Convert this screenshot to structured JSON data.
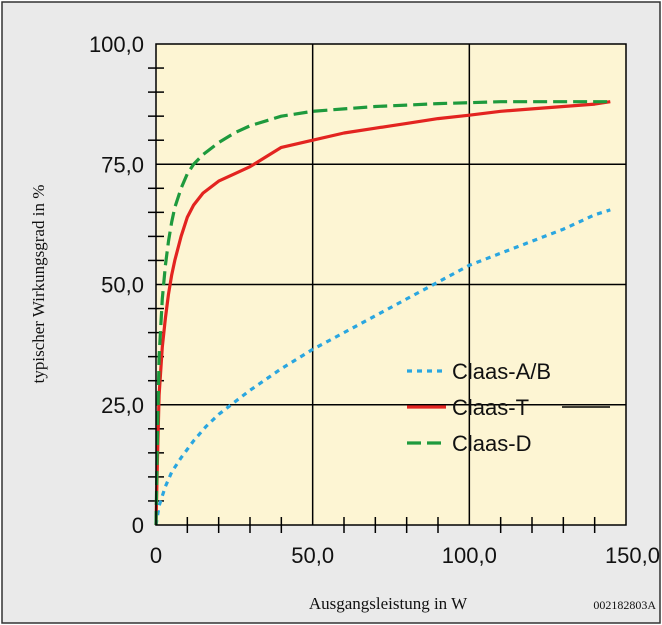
{
  "chart_data": {
    "type": "line",
    "title": "",
    "xlabel": "Ausgangsleistung in W",
    "ylabel": "typischer Wirkungsgrad in %",
    "xlim": [
      0,
      150
    ],
    "ylim": [
      0,
      100
    ],
    "x_ticks": [
      "0",
      "50,0",
      "100,0",
      "150,0"
    ],
    "y_ticks": [
      "0",
      "25,0",
      "50,0",
      "75,0",
      "100,0"
    ],
    "grid": true,
    "legend_position": "lower-right",
    "figure_code": "002182803A",
    "colors": {
      "plot_bg": "#fdf5d3",
      "frame_bg": "#eaeaea",
      "grid": "#000000"
    },
    "series": [
      {
        "name": "Claas-A/B",
        "color": "#2aa6e0",
        "dash": "dotted",
        "x": [
          0,
          1,
          3,
          5,
          8,
          12,
          16,
          20,
          25,
          30,
          40,
          50,
          60,
          70,
          80,
          90,
          100,
          110,
          120,
          130,
          140,
          145
        ],
        "y": [
          0,
          4,
          8,
          11,
          14,
          17.5,
          20.5,
          23,
          25.5,
          28,
          32.5,
          36.5,
          40,
          43.5,
          47,
          50.5,
          54,
          56.5,
          59,
          61.5,
          64.5,
          65.5
        ]
      },
      {
        "name": "Claas-T",
        "color": "#e32420",
        "dash": "solid",
        "x": [
          0,
          0.5,
          1,
          2,
          3,
          4,
          5,
          6,
          8,
          10,
          12,
          15,
          20,
          25,
          30,
          35,
          40,
          50,
          60,
          70,
          80,
          90,
          100,
          110,
          120,
          130,
          140,
          145
        ],
        "y": [
          0,
          15,
          27,
          37,
          43,
          48,
          52,
          55,
          60,
          64,
          66.5,
          69,
          71.5,
          73,
          74.5,
          76.5,
          78.5,
          80,
          81.5,
          82.5,
          83.5,
          84.5,
          85.2,
          86,
          86.5,
          87,
          87.5,
          88
        ]
      },
      {
        "name": "Claas-D",
        "color": "#1e9a3d",
        "dash": "dashed",
        "x": [
          0,
          0.5,
          1,
          2,
          3,
          4,
          5,
          6,
          8,
          10,
          12,
          15,
          20,
          25,
          30,
          40,
          50,
          60,
          70,
          80,
          90,
          100,
          110,
          120,
          130,
          140,
          145
        ],
        "y": [
          0,
          20,
          35,
          47,
          54,
          59,
          63,
          66,
          70,
          73,
          75,
          77,
          79.5,
          81.5,
          83,
          85,
          86,
          86.5,
          87,
          87.3,
          87.6,
          87.8,
          88,
          88,
          88,
          88,
          88
        ]
      }
    ]
  }
}
